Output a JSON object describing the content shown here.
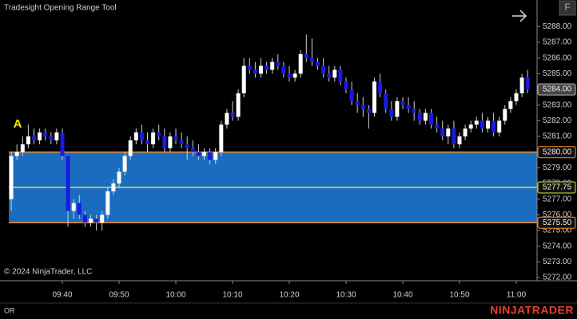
{
  "chart_data": {
    "type": "candlestick",
    "title": "Tradesight Opening Range Tool",
    "annotation": "A",
    "copyright": "© 2024 NinjaTrader, LLC",
    "footer_label": "OR",
    "brand": "NINJATRADER",
    "button": "F",
    "up_color": "#ffffff",
    "down_color": "#1a1ae0",
    "x": [
      "09:31",
      "09:32",
      "09:33",
      "09:34",
      "09:35",
      "09:36",
      "09:37",
      "09:38",
      "09:39",
      "09:40",
      "09:41",
      "09:42",
      "09:43",
      "09:44",
      "09:45",
      "09:46",
      "09:47",
      "09:48",
      "09:49",
      "09:50",
      "09:51",
      "09:52",
      "09:53",
      "09:54",
      "09:55",
      "09:56",
      "09:57",
      "09:58",
      "09:59",
      "10:00",
      "10:01",
      "10:02",
      "10:03",
      "10:04",
      "10:05",
      "10:06",
      "10:07",
      "10:08",
      "10:09",
      "10:10",
      "10:11",
      "10:12",
      "10:13",
      "10:14",
      "10:15",
      "10:16",
      "10:17",
      "10:18",
      "10:19",
      "10:20",
      "10:21",
      "10:22",
      "10:23",
      "10:24",
      "10:25",
      "10:26",
      "10:27",
      "10:28",
      "10:29",
      "10:30",
      "10:31",
      "10:32",
      "10:33",
      "10:34",
      "10:35",
      "10:36",
      "10:37",
      "10:38",
      "10:39",
      "10:40",
      "10:41",
      "10:42",
      "10:43",
      "10:44",
      "10:45",
      "10:46",
      "10:47",
      "10:48",
      "10:49",
      "10:50",
      "10:51",
      "10:52",
      "10:53",
      "10:54",
      "10:55",
      "10:56",
      "10:57",
      "10:58",
      "10:59",
      "11:00",
      "11:01",
      "11:02"
    ],
    "open": [
      5277.0,
      5279.75,
      5280.0,
      5280.5,
      5281.0,
      5280.75,
      5281.25,
      5281.0,
      5280.75,
      5281.25,
      5279.75,
      5276.25,
      5276.75,
      5276.0,
      5275.5,
      5275.75,
      5275.5,
      5276.0,
      5277.5,
      5278.0,
      5278.75,
      5279.75,
      5280.75,
      5281.25,
      5280.75,
      5280.5,
      5281.25,
      5281.0,
      5280.25,
      5281.0,
      5280.75,
      5280.5,
      5280.25,
      5280.0,
      5279.75,
      5280.0,
      5279.5,
      5280.0,
      5281.75,
      5282.5,
      5282.25,
      5283.75,
      5285.5,
      5285.25,
      5285.0,
      5285.5,
      5285.25,
      5285.75,
      5285.5,
      5285.0,
      5284.75,
      5285.0,
      5286.25,
      5286.0,
      5285.75,
      5285.5,
      5285.0,
      5284.75,
      5285.25,
      5284.5,
      5284.0,
      5283.25,
      5283.0,
      5282.75,
      5282.5,
      5284.5,
      5283.75,
      5282.75,
      5282.25,
      5283.25,
      5283.0,
      5282.75,
      5282.5,
      5282.0,
      5282.5,
      5281.75,
      5281.5,
      5281.0,
      5281.5,
      5280.5,
      5281.0,
      5281.5,
      5281.75,
      5282.0,
      5281.5,
      5282.0,
      5281.25,
      5282.0,
      5282.75,
      5283.25,
      5283.75,
      5284.75
    ],
    "high": [
      5280.0,
      5280.5,
      5281.0,
      5281.75,
      5281.5,
      5281.5,
      5281.5,
      5281.25,
      5281.5,
      5281.5,
      5279.75,
      5277.0,
      5277.25,
      5276.25,
      5276.0,
      5276.0,
      5276.25,
      5277.75,
      5278.25,
      5279.0,
      5280.0,
      5281.0,
      5281.5,
      5281.75,
      5281.25,
      5281.5,
      5281.75,
      5281.5,
      5281.25,
      5281.5,
      5281.25,
      5281.0,
      5280.75,
      5280.5,
      5280.25,
      5280.25,
      5280.25,
      5282.0,
      5282.75,
      5283.25,
      5284.0,
      5286.0,
      5286.0,
      5285.75,
      5286.0,
      5285.75,
      5286.0,
      5286.25,
      5285.75,
      5285.5,
      5285.25,
      5286.5,
      5287.5,
      5287.25,
      5286.0,
      5286.0,
      5285.5,
      5285.5,
      5285.5,
      5284.75,
      5284.5,
      5283.75,
      5283.5,
      5283.0,
      5284.75,
      5285.0,
      5284.0,
      5283.25,
      5283.5,
      5283.5,
      5283.5,
      5283.25,
      5282.75,
      5282.75,
      5282.75,
      5282.25,
      5282.0,
      5281.75,
      5282.0,
      5281.25,
      5281.75,
      5282.0,
      5282.25,
      5282.5,
      5282.25,
      5282.5,
      5282.25,
      5283.0,
      5283.5,
      5284.0,
      5285.0,
      5285.25
    ],
    "low": [
      5276.25,
      5279.5,
      5279.75,
      5280.25,
      5280.5,
      5280.5,
      5280.75,
      5280.5,
      5280.5,
      5279.5,
      5275.25,
      5275.75,
      5275.75,
      5275.25,
      5275.25,
      5275.0,
      5275.0,
      5275.75,
      5277.25,
      5277.75,
      5278.5,
      5279.5,
      5280.5,
      5280.5,
      5280.0,
      5280.25,
      5280.75,
      5280.0,
      5280.0,
      5280.5,
      5280.25,
      5279.5,
      5279.75,
      5279.5,
      5279.5,
      5279.25,
      5279.25,
      5279.75,
      5281.5,
      5282.0,
      5282.0,
      5283.5,
      5285.0,
      5284.75,
      5284.75,
      5285.0,
      5285.0,
      5285.25,
      5284.75,
      5284.5,
      5284.5,
      5284.75,
      5285.75,
      5285.5,
      5285.25,
      5284.75,
      5284.5,
      5284.5,
      5284.25,
      5283.75,
      5283.0,
      5282.5,
      5282.25,
      5281.5,
      5282.25,
      5283.5,
      5282.5,
      5282.0,
      5282.0,
      5282.75,
      5282.5,
      5282.0,
      5281.75,
      5281.75,
      5281.5,
      5281.25,
      5280.75,
      5280.5,
      5280.25,
      5280.25,
      5280.75,
      5281.25,
      5281.5,
      5281.25,
      5281.25,
      5281.0,
      5281.0,
      5281.75,
      5282.5,
      5283.0,
      5283.5,
      5283.75
    ],
    "close": [
      5279.75,
      5280.0,
      5280.5,
      5281.0,
      5280.75,
      5281.25,
      5281.0,
      5280.75,
      5281.25,
      5279.75,
      5276.25,
      5276.75,
      5276.0,
      5275.5,
      5275.75,
      5275.5,
      5276.0,
      5277.5,
      5278.0,
      5278.75,
      5279.75,
      5280.75,
      5281.25,
      5280.75,
      5280.5,
      5281.25,
      5281.0,
      5280.25,
      5281.0,
      5280.75,
      5280.5,
      5280.25,
      5280.0,
      5279.75,
      5280.0,
      5279.5,
      5280.0,
      5281.75,
      5282.5,
      5282.25,
      5283.75,
      5285.5,
      5285.25,
      5285.0,
      5285.5,
      5285.25,
      5285.75,
      5285.5,
      5285.0,
      5284.75,
      5285.0,
      5286.25,
      5286.0,
      5285.75,
      5285.5,
      5285.0,
      5284.75,
      5285.25,
      5284.5,
      5284.0,
      5283.25,
      5283.0,
      5282.75,
      5282.5,
      5284.5,
      5283.75,
      5282.75,
      5282.25,
      5283.25,
      5283.0,
      5282.75,
      5282.5,
      5282.0,
      5282.5,
      5281.75,
      5281.5,
      5281.0,
      5281.5,
      5280.5,
      5281.0,
      5281.5,
      5281.75,
      5282.0,
      5281.5,
      5282.0,
      5281.25,
      5282.0,
      5282.75,
      5283.25,
      5283.75,
      5284.75,
      5284.0
    ],
    "ylim": [
      5271.8,
      5289.7
    ],
    "yticks": [
      {
        "value": 5272,
        "label": "5272.00"
      },
      {
        "value": 5273,
        "label": "5273.00"
      },
      {
        "value": 5274,
        "label": "5274.00"
      },
      {
        "value": 5275,
        "label": "5275.00"
      },
      {
        "value": 5276,
        "label": "5276.00"
      },
      {
        "value": 5277,
        "label": "5277.00"
      },
      {
        "value": 5278,
        "label": "5278.00"
      },
      {
        "value": 5279,
        "label": "5279.00"
      },
      {
        "value": 5280,
        "label": "5280.00"
      },
      {
        "value": 5281,
        "label": "5281.00"
      },
      {
        "value": 5282,
        "label": "5282.00"
      },
      {
        "value": 5283,
        "label": "5283.00"
      },
      {
        "value": 5284,
        "label": "5284.00"
      },
      {
        "value": 5285,
        "label": "5285.00"
      },
      {
        "value": 5286,
        "label": "5286.00"
      },
      {
        "value": 5287,
        "label": "5287.00"
      },
      {
        "value": 5288,
        "label": "5288.00"
      }
    ],
    "xticks": [
      "09:40",
      "09:50",
      "10:00",
      "10:10",
      "10:20",
      "10:30",
      "10:40",
      "10:50",
      "11:00"
    ],
    "opening_range": {
      "fill": "#1a6cc0",
      "line_color": "#ff8c1a",
      "mid_color": "#e6e620",
      "high": {
        "value": 5280,
        "label": "5280.00"
      },
      "mid": {
        "value": 5277.75,
        "label": "5277.75"
      },
      "low": {
        "value": 5275.5,
        "label": "5275.50"
      }
    },
    "last_price": {
      "value": 5284,
      "label": "5284.00"
    }
  }
}
